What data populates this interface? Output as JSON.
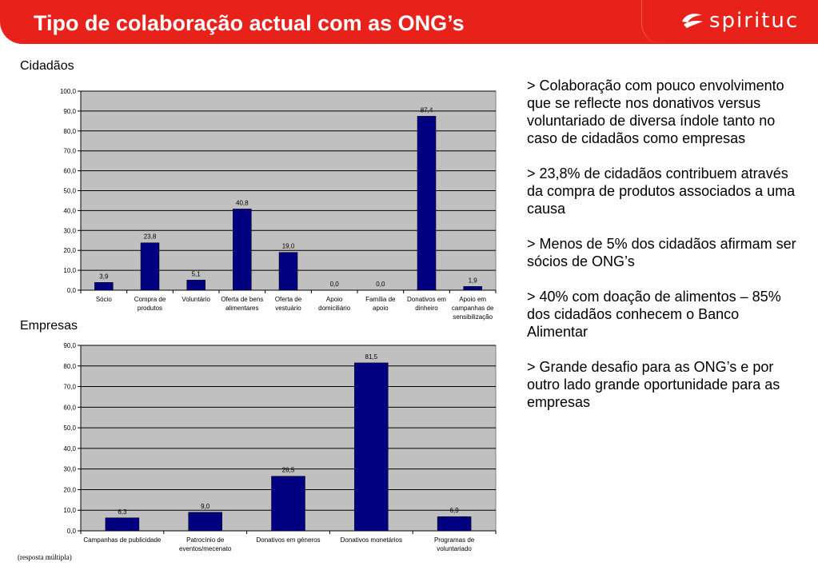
{
  "header": {
    "title": "Tipo de colaboração actual com as ONG’s",
    "logo_text": "spirituc",
    "logo_icon": "spirituc-logo-icon"
  },
  "colors": {
    "header_red": "#e8211b",
    "bar_navy": "#000080",
    "plot_bg": "#c0c0c0"
  },
  "sections": {
    "citizens_label": "Cidadãos",
    "companies_label": "Empresas"
  },
  "chart_data": [
    {
      "type": "bar",
      "categories": [
        "Sócio",
        "Compra de\nprodutos",
        "Voluntário",
        "Oferta de bens\nalimentares",
        "Oferta de\nvestuário",
        "Apoio\ndomiciliário",
        "Família de\napoio",
        "Donativos em\ndinheiro",
        "Apoio em\ncampanhas de\nsensibilização"
      ],
      "values": [
        3.9,
        23.8,
        5.1,
        40.8,
        19.0,
        0.0,
        0.0,
        87.4,
        1.9
      ],
      "data_labels": [
        "3,9",
        "23,8",
        "5,1",
        "40,8",
        "19,0",
        "0,0",
        "0,0",
        "87,4",
        "1,9"
      ],
      "ylim": [
        0,
        100
      ],
      "ytick_labels": [
        "0,0",
        "10,0",
        "20,0",
        "30,0",
        "40,0",
        "50,0",
        "60,0",
        "70,0",
        "80,0",
        "90,0",
        "100,0"
      ],
      "grid": true,
      "legend": "none"
    },
    {
      "type": "bar",
      "categories": [
        "Campanhas de publicidade",
        "Patrocínio de\neventos/mecenato",
        "Donativos em géneros",
        "Donativos monetários",
        "Programas de\nvoluntariado"
      ],
      "values": [
        6.3,
        9.0,
        26.5,
        81.5,
        6.9
      ],
      "data_labels": [
        "6,3",
        "9,0",
        "26,5",
        "81,5",
        "6,9"
      ],
      "ylim": [
        0,
        90
      ],
      "ytick_labels": [
        "0,0",
        "10,0",
        "20,0",
        "30,0",
        "40,0",
        "50,0",
        "60,0",
        "70,0",
        "80,0",
        "90,0"
      ],
      "grid": true,
      "legend": "none"
    }
  ],
  "bullets": [
    "> Colaboração com pouco envolvimento que se reflecte nos donativos versus voluntariado de diversa índole tanto no caso de cidadãos como empresas",
    "> 23,8% de cidadãos contribuem através da compra de produtos associados a uma causa",
    "> Menos de 5% dos cidadãos afirmam ser sócios de ONG’s",
    "> 40% com doação de alimentos – 85% dos cidadãos conhecem o Banco Alimentar",
    "> Grande desafio para as ONG’s e por outro lado grande oportunidade para as empresas"
  ],
  "footnote": "(resposta múltipla)"
}
